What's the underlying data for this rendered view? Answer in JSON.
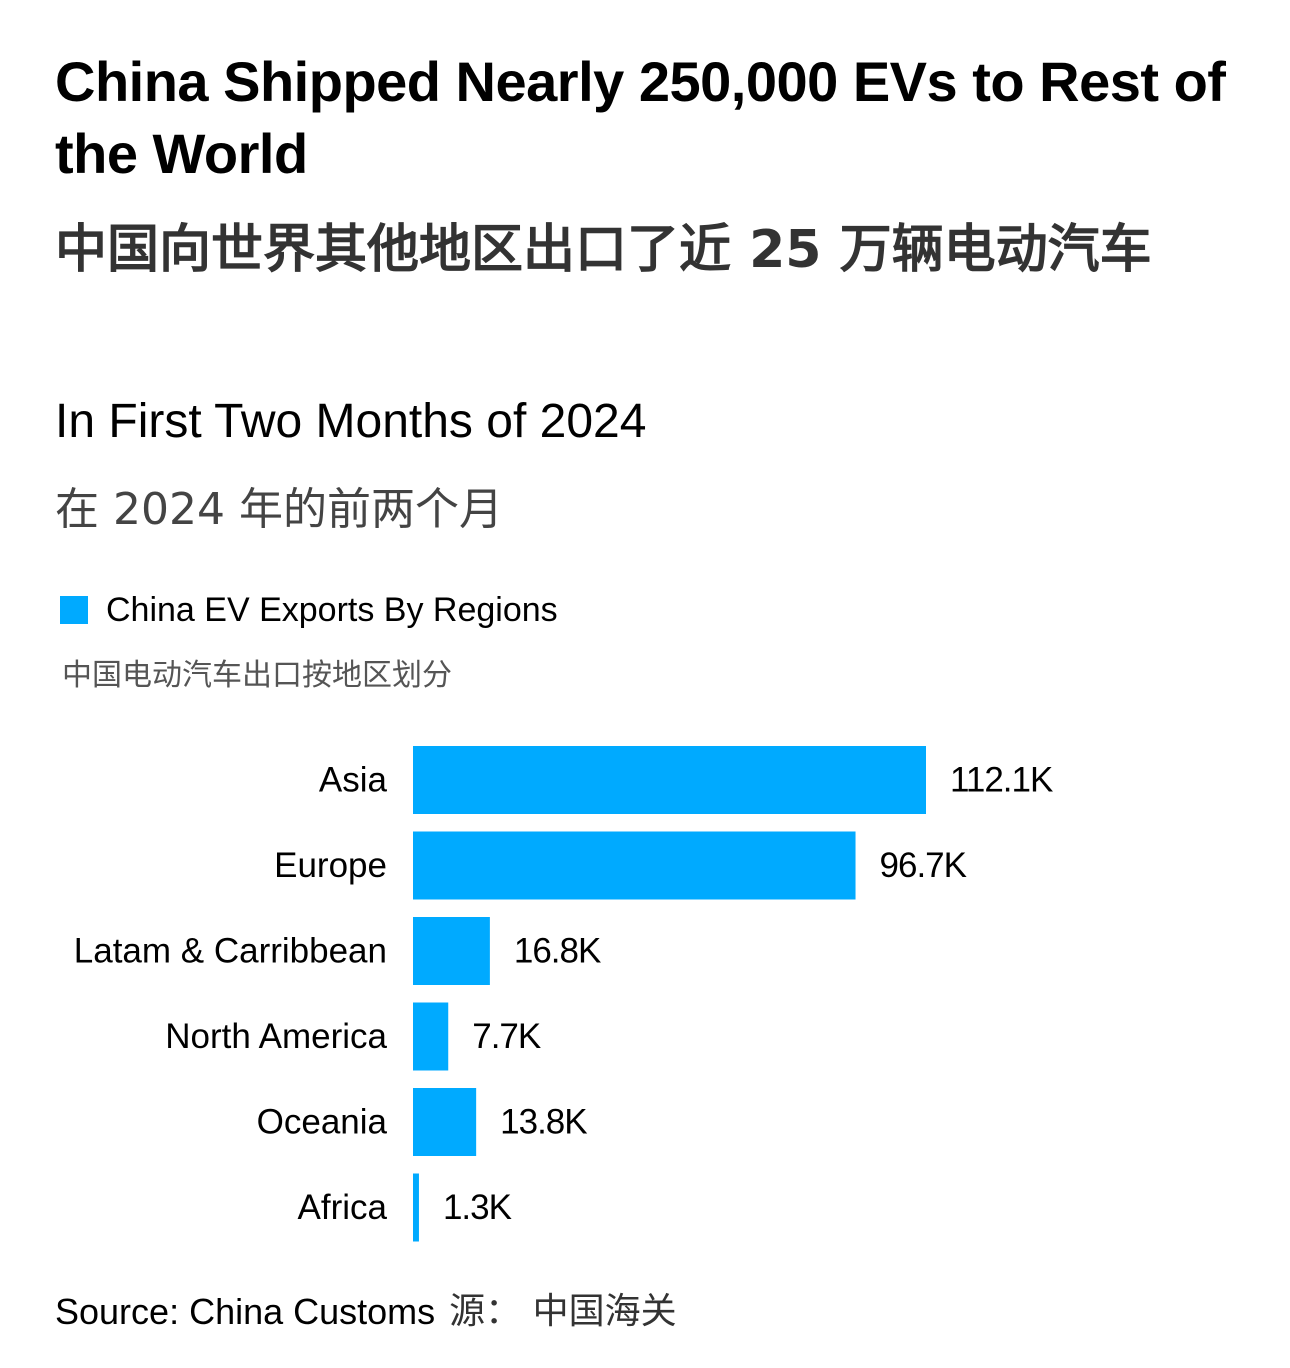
{
  "header": {
    "title_en": "China Shipped Nearly 250,000 EVs to Rest of the World",
    "title_zh": "中国向世界其他地区出口了近 25 万辆电动汽车",
    "subtitle_en": "In First Two Months of 2024",
    "subtitle_zh": "在 2024 年的前两个月"
  },
  "legend": {
    "label_en": "China EV Exports By Regions",
    "label_zh": "中国电动汽车出口按地区划分"
  },
  "source": {
    "label_en": "Source: China Customs",
    "label_zh": "源：  中国海关"
  },
  "colors": {
    "bar": "#00aaff",
    "text": "#000000"
  },
  "chart_data": {
    "type": "bar",
    "orientation": "horizontal",
    "title": "China Shipped Nearly 250,000 EVs to Rest of the World",
    "categories": [
      "Asia",
      "Europe",
      "Latam & Carribbean",
      "North America",
      "Oceania",
      "Africa"
    ],
    "values": [
      112.1,
      96.7,
      16.8,
      7.7,
      13.8,
      1.3
    ],
    "value_labels": [
      "112.1K",
      "96.7K",
      "16.8K",
      "7.7K",
      "13.8K",
      "1.3K"
    ],
    "unit": "K",
    "series": [
      {
        "name": "China EV Exports By Regions",
        "values": [
          112.1,
          96.7,
          16.8,
          7.7,
          13.8,
          1.3
        ]
      }
    ],
    "xlim": [
      0,
      112.1
    ],
    "grid": false,
    "legend_position": "top-left",
    "xlabel": "",
    "ylabel": ""
  }
}
